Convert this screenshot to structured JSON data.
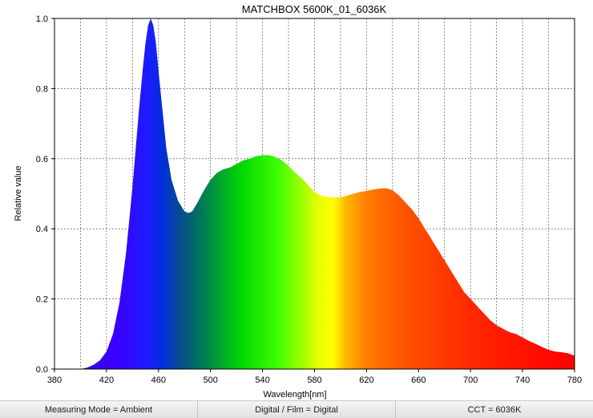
{
  "chart_data": {
    "type": "area",
    "title": "MATCHBOX 5600K_01_6036K",
    "xlabel": "Wavelength[nm]",
    "ylabel": "Relative value",
    "xlim": [
      380,
      780
    ],
    "ylim": [
      0,
      1.0
    ],
    "x_ticks": [
      380,
      420,
      460,
      500,
      540,
      580,
      620,
      660,
      700,
      740,
      780
    ],
    "x_tick_labels": [
      "380",
      "420",
      "460",
      "500",
      "540",
      "580",
      "620",
      "660",
      "700",
      "740",
      "780"
    ],
    "y_ticks": [
      0,
      0.2,
      0.4,
      0.6,
      0.8,
      1.0
    ],
    "y_tick_labels": [
      "0.0",
      "0.2",
      "0.4",
      "0.6",
      "0.8",
      "1.0"
    ],
    "x_grid_step": 20,
    "grid": true,
    "fill": "visible-spectrum gradient",
    "series": [
      {
        "x": [
          380,
          400,
          405,
          410,
          415,
          420,
          425,
          430,
          435,
          440,
          445,
          448,
          450,
          452,
          454,
          456,
          458,
          460,
          463,
          466,
          470,
          475,
          480,
          483,
          486,
          490,
          495,
          500,
          505,
          510,
          515,
          520,
          525,
          530,
          535,
          540,
          545,
          550,
          555,
          560,
          565,
          570,
          575,
          580,
          585,
          590,
          595,
          600,
          605,
          610,
          615,
          620,
          625,
          630,
          635,
          640,
          645,
          650,
          655,
          660,
          665,
          670,
          675,
          680,
          685,
          690,
          695,
          700,
          705,
          710,
          715,
          720,
          725,
          730,
          735,
          740,
          745,
          750,
          755,
          760,
          765,
          770,
          775,
          780
        ],
        "y": [
          0.0,
          0.0,
          0.004,
          0.012,
          0.025,
          0.05,
          0.1,
          0.19,
          0.33,
          0.52,
          0.74,
          0.86,
          0.93,
          0.98,
          1.0,
          0.98,
          0.93,
          0.85,
          0.74,
          0.63,
          0.54,
          0.48,
          0.45,
          0.445,
          0.45,
          0.475,
          0.51,
          0.54,
          0.56,
          0.57,
          0.575,
          0.585,
          0.595,
          0.6,
          0.607,
          0.61,
          0.61,
          0.605,
          0.595,
          0.58,
          0.56,
          0.545,
          0.525,
          0.505,
          0.495,
          0.49,
          0.49,
          0.49,
          0.495,
          0.5,
          0.505,
          0.508,
          0.512,
          0.515,
          0.516,
          0.51,
          0.495,
          0.475,
          0.455,
          0.43,
          0.4,
          0.37,
          0.34,
          0.31,
          0.28,
          0.25,
          0.22,
          0.2,
          0.18,
          0.16,
          0.14,
          0.125,
          0.115,
          0.105,
          0.1,
          0.09,
          0.08,
          0.072,
          0.063,
          0.055,
          0.05,
          0.048,
          0.045,
          0.038
        ]
      }
    ]
  },
  "status_bar": {
    "measuring_mode": "Measuring Mode = Ambient",
    "digital_film": "Digital / Film = Digital",
    "cct": "CCT = 6036K"
  }
}
